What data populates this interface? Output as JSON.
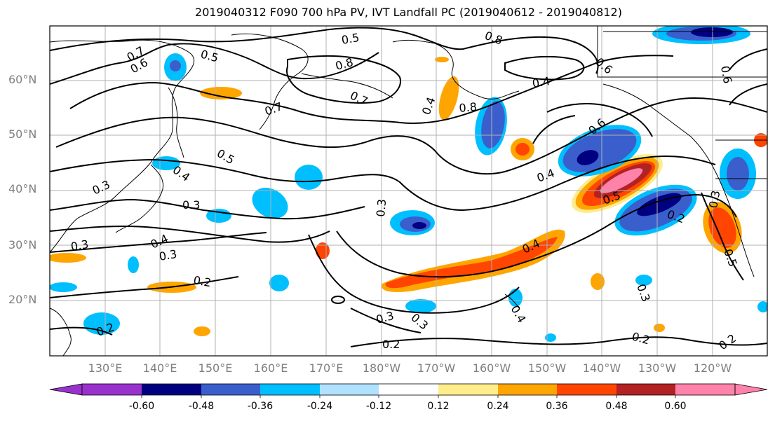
{
  "title": "2019040312 F090 700 hPa PV, IVT Landfall PC (2019040612 - 2019040812)",
  "map": {
    "lat_labels": [
      "60°N",
      "50°N",
      "40°N",
      "30°N",
      "20°N"
    ],
    "lon_labels": [
      "130°E",
      "140°E",
      "150°E",
      "160°E",
      "170°E",
      "180°W",
      "170°W",
      "160°W",
      "150°W",
      "140°W",
      "130°W",
      "120°W"
    ],
    "contour_labels": [
      "0.5",
      "0.8",
      "0.7",
      "0.6",
      "0.5",
      "0.7",
      "0.8",
      "0.7",
      "0.6",
      "0.4",
      "0.5",
      "0.4",
      "0.3",
      "0.5",
      "0.6",
      "0.4",
      "0.3",
      "0.3",
      "0.3",
      "0.4",
      "0.3",
      "0.2",
      "0.3",
      "0.3",
      "0.2",
      "0.3",
      "0.2",
      "0.4",
      "0.5",
      "0.2",
      "0.3",
      "0.4",
      "0.2",
      "0.2",
      "0.8",
      "0.6",
      "0.4"
    ]
  },
  "colorbar": {
    "ticks": [
      "-0.60",
      "-0.48",
      "-0.36",
      "-0.24",
      "-0.12",
      "0.12",
      "0.24",
      "0.36",
      "0.48",
      "0.60"
    ],
    "colors": [
      "#9932cc",
      "#000080",
      "#3a5fcd",
      "#00bfff",
      "#b0e2ff",
      "#ffffff",
      "#ffec8b",
      "#ffa500",
      "#ff4500",
      "#b22222",
      "#ff82ab"
    ]
  }
}
